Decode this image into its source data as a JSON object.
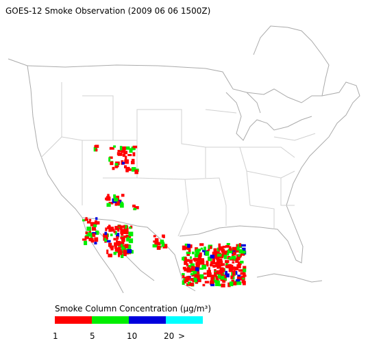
{
  "title": "GOES-12 Smoke Observation (2009 06 06  1500Z)",
  "legend": {
    "title": "Smoke Column Concentration (μg/m³)",
    "colors": [
      "#ff0000",
      "#00ee00",
      "#0000dd",
      "#00ffff"
    ],
    "labels": [
      "1",
      "5",
      "10",
      "20",
      ">"
    ]
  }
}
